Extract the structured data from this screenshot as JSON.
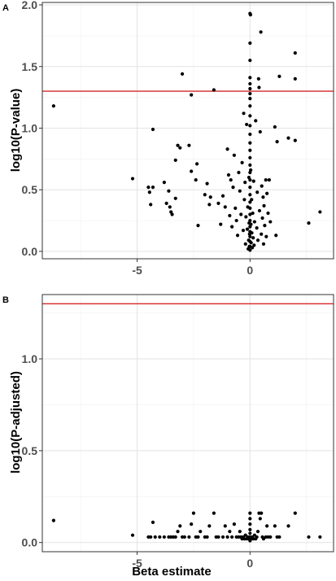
{
  "colors": {
    "point": "#000000",
    "threshold": "#d62728",
    "grid": "#e3e3e3",
    "frame": "#333333",
    "tick_text": "#4d4d4d"
  },
  "chart_data": [
    {
      "type": "scatter",
      "panel_label": "A",
      "title": "",
      "xlabel": "",
      "ylabel": "log10(P-value)",
      "xlim": [
        -9.2,
        3.7
      ],
      "ylim": [
        -0.06,
        2.02
      ],
      "x_ticks": [
        -5,
        0
      ],
      "x_tick_labels": [
        "-5",
        "0"
      ],
      "y_ticks": [
        0.0,
        0.5,
        1.0,
        1.5,
        2.0
      ],
      "y_tick_labels": [
        "0.0",
        "0.5",
        "1.0",
        "1.5",
        "2.0"
      ],
      "grid": true,
      "hline": 1.3,
      "points": [
        [
          -8.7,
          1.18
        ],
        [
          -5.2,
          0.59
        ],
        [
          -4.5,
          0.52
        ],
        [
          -4.45,
          0.48
        ],
        [
          -4.4,
          0.38
        ],
        [
          -4.3,
          0.99
        ],
        [
          -4.3,
          0.52
        ],
        [
          -3.8,
          0.56
        ],
        [
          -3.7,
          0.39
        ],
        [
          -3.6,
          0.49
        ],
        [
          -3.55,
          0.36
        ],
        [
          -3.5,
          0.32
        ],
        [
          -3.45,
          0.3
        ],
        [
          -3.3,
          0.74
        ],
        [
          -3.3,
          0.43
        ],
        [
          -3.2,
          0.86
        ],
        [
          -3.1,
          0.84
        ],
        [
          -3.0,
          1.44
        ],
        [
          -2.7,
          0.86
        ],
        [
          -2.6,
          1.27
        ],
        [
          -2.6,
          0.65
        ],
        [
          -2.4,
          0.58
        ],
        [
          -2.35,
          0.71
        ],
        [
          -2.3,
          0.21
        ],
        [
          -2.0,
          0.46
        ],
        [
          -1.9,
          0.55
        ],
        [
          -1.8,
          0.38
        ],
        [
          -1.75,
          0.44
        ],
        [
          -1.6,
          1.31
        ],
        [
          -1.4,
          0.39
        ],
        [
          -1.3,
          0.22
        ],
        [
          -1.2,
          0.45
        ],
        [
          -1.1,
          0.36
        ],
        [
          -1.0,
          0.83
        ],
        [
          -0.95,
          0.62
        ],
        [
          -0.9,
          0.29
        ],
        [
          -0.85,
          0.58
        ],
        [
          -0.8,
          0.2
        ],
        [
          -0.75,
          0.52
        ],
        [
          -0.7,
          0.78
        ],
        [
          -0.65,
          0.35
        ],
        [
          -0.6,
          0.25
        ],
        [
          -0.55,
          0.13
        ],
        [
          -0.5,
          0.64
        ],
        [
          -0.45,
          0.49
        ],
        [
          -0.4,
          0.3
        ],
        [
          -0.35,
          0.72
        ],
        [
          -0.3,
          0.17
        ],
        [
          -0.28,
          1.12
        ],
        [
          -0.25,
          0.42
        ],
        [
          -0.22,
          0.56
        ],
        [
          -0.2,
          0.06
        ],
        [
          -0.18,
          0.28
        ],
        [
          -0.15,
          1.03
        ],
        [
          -0.12,
          0.18
        ],
        [
          -0.1,
          0.36
        ],
        [
          -0.08,
          0.02
        ],
        [
          -0.06,
          0.09
        ],
        [
          -0.05,
          0.6
        ],
        [
          -0.04,
          0.23
        ],
        [
          -0.03,
          0.04
        ],
        [
          -0.02,
          0.14
        ],
        [
          0.0,
          1.93
        ],
        [
          0.0,
          1.69
        ],
        [
          0.0,
          1.55
        ],
        [
          0.0,
          1.41
        ],
        [
          0.0,
          1.36
        ],
        [
          0.0,
          1.32
        ],
        [
          0.0,
          1.28
        ],
        [
          0.0,
          1.24
        ],
        [
          0.0,
          1.18
        ],
        [
          0.0,
          1.1
        ],
        [
          0.0,
          1.02
        ],
        [
          0.0,
          0.95
        ],
        [
          0.0,
          0.88
        ],
        [
          0.0,
          0.82
        ],
        [
          0.0,
          0.76
        ],
        [
          0.0,
          0.7
        ],
        [
          0.0,
          0.64
        ],
        [
          0.0,
          0.58
        ],
        [
          0.0,
          0.52
        ],
        [
          0.0,
          0.46
        ],
        [
          0.0,
          0.4
        ],
        [
          0.0,
          0.35
        ],
        [
          0.0,
          0.3
        ],
        [
          0.0,
          0.25
        ],
        [
          0.0,
          0.2
        ],
        [
          0.0,
          0.16
        ],
        [
          0.0,
          0.12
        ],
        [
          0.0,
          0.08
        ],
        [
          0.0,
          0.04
        ],
        [
          0.0,
          0.01
        ],
        [
          0.02,
          1.92
        ],
        [
          0.03,
          0.66
        ],
        [
          0.04,
          0.22
        ],
        [
          0.05,
          0.07
        ],
        [
          0.07,
          0.42
        ],
        [
          0.08,
          0.15
        ],
        [
          0.1,
          0.03
        ],
        [
          0.12,
          0.31
        ],
        [
          0.14,
          0.11
        ],
        [
          0.16,
          0.57
        ],
        [
          0.18,
          0.05
        ],
        [
          0.2,
          0.24
        ],
        [
          0.25,
          1.06
        ],
        [
          0.3,
          0.19
        ],
        [
          0.32,
          0.48
        ],
        [
          0.35,
          0.09
        ],
        [
          0.38,
          1.4
        ],
        [
          0.4,
          1.33
        ],
        [
          0.42,
          0.33
        ],
        [
          0.45,
          0.97
        ],
        [
          0.48,
          1.78
        ],
        [
          0.5,
          0.14
        ],
        [
          0.52,
          0.53
        ],
        [
          0.55,
          0.27
        ],
        [
          0.58,
          0.44
        ],
        [
          0.6,
          0.06
        ],
        [
          0.62,
          0.37
        ],
        [
          0.65,
          0.21
        ],
        [
          0.7,
          0.58
        ],
        [
          0.72,
          0.12
        ],
        [
          0.75,
          0.47
        ],
        [
          0.8,
          0.31
        ],
        [
          0.85,
          0.58
        ],
        [
          0.9,
          0.24
        ],
        [
          1.1,
          1.01
        ],
        [
          1.15,
          0.13
        ],
        [
          1.2,
          0.89
        ],
        [
          1.3,
          1.42
        ],
        [
          1.7,
          0.92
        ],
        [
          2.0,
          1.61
        ],
        [
          2.0,
          1.4
        ],
        [
          2.0,
          0.9
        ],
        [
          2.6,
          0.23
        ],
        [
          3.1,
          0.32
        ]
      ]
    },
    {
      "type": "scatter",
      "panel_label": "B",
      "title": "",
      "xlabel": "Beta estimate",
      "ylabel": "log10(P-adjusted)",
      "xlim": [
        -9.2,
        3.7
      ],
      "ylim": [
        -0.05,
        1.35
      ],
      "x_ticks": [
        -5,
        0
      ],
      "x_tick_labels": [
        "-5",
        "0"
      ],
      "y_ticks": [
        0.0,
        0.5,
        1.0
      ],
      "y_tick_labels": [
        "0.0",
        "0.5",
        "1.0"
      ],
      "grid": true,
      "hline": 1.3,
      "points": [
        [
          -8.7,
          0.12
        ],
        [
          -5.2,
          0.04
        ],
        [
          -4.5,
          0.03
        ],
        [
          -4.4,
          0.03
        ],
        [
          -4.3,
          0.11
        ],
        [
          -4.2,
          0.03
        ],
        [
          -4.0,
          0.03
        ],
        [
          -3.8,
          0.03
        ],
        [
          -3.6,
          0.03
        ],
        [
          -3.5,
          0.03
        ],
        [
          -3.4,
          0.03
        ],
        [
          -3.3,
          0.03
        ],
        [
          -3.2,
          0.06
        ],
        [
          -3.1,
          0.09
        ],
        [
          -3.0,
          0.03
        ],
        [
          -2.9,
          0.03
        ],
        [
          -2.7,
          0.03
        ],
        [
          -2.6,
          0.1
        ],
        [
          -2.5,
          0.16
        ],
        [
          -2.4,
          0.03
        ],
        [
          -2.3,
          0.03
        ],
        [
          -2.2,
          0.06
        ],
        [
          -2.0,
          0.03
        ],
        [
          -1.9,
          0.03
        ],
        [
          -1.8,
          0.09
        ],
        [
          -1.6,
          0.16
        ],
        [
          -1.5,
          0.03
        ],
        [
          -1.4,
          0.03
        ],
        [
          -1.2,
          0.03
        ],
        [
          -1.1,
          0.09
        ],
        [
          -1.0,
          0.03
        ],
        [
          -0.9,
          0.06
        ],
        [
          -0.8,
          0.03
        ],
        [
          -0.7,
          0.1
        ],
        [
          -0.6,
          0.03
        ],
        [
          -0.5,
          0.03
        ],
        [
          -0.45,
          0.06
        ],
        [
          -0.4,
          0.03
        ],
        [
          -0.35,
          0.02
        ],
        [
          -0.3,
          0.03
        ],
        [
          -0.25,
          0.02
        ],
        [
          -0.2,
          0.04
        ],
        [
          -0.15,
          0.02
        ],
        [
          -0.1,
          0.03
        ],
        [
          -0.05,
          0.02
        ],
        [
          0.0,
          0.16
        ],
        [
          0.0,
          0.13
        ],
        [
          0.0,
          0.1
        ],
        [
          0.0,
          0.07
        ],
        [
          0.0,
          0.05
        ],
        [
          0.0,
          0.03
        ],
        [
          0.0,
          0.01
        ],
        [
          0.05,
          0.02
        ],
        [
          0.1,
          0.03
        ],
        [
          0.15,
          0.02
        ],
        [
          0.2,
          0.04
        ],
        [
          0.25,
          0.02
        ],
        [
          0.3,
          0.03
        ],
        [
          0.35,
          0.06
        ],
        [
          0.4,
          0.16
        ],
        [
          0.45,
          0.13
        ],
        [
          0.5,
          0.16
        ],
        [
          0.55,
          0.03
        ],
        [
          0.6,
          0.02
        ],
        [
          0.7,
          0.03
        ],
        [
          0.75,
          0.09
        ],
        [
          0.8,
          0.03
        ],
        [
          0.9,
          0.03
        ],
        [
          1.1,
          0.09
        ],
        [
          1.2,
          0.03
        ],
        [
          1.3,
          0.03
        ],
        [
          1.7,
          0.09
        ],
        [
          2.0,
          0.16
        ],
        [
          2.6,
          0.03
        ],
        [
          3.1,
          0.03
        ]
      ]
    }
  ]
}
